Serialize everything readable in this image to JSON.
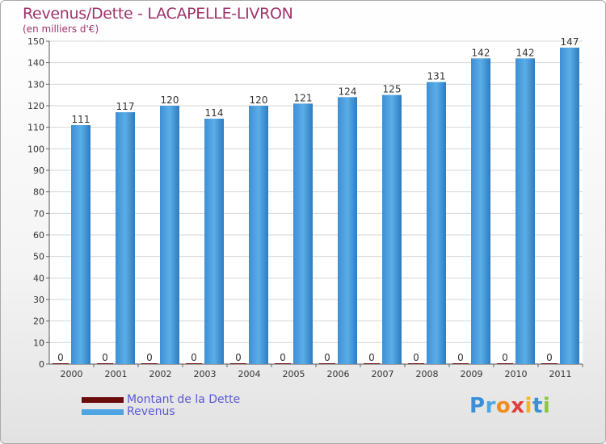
{
  "chart_data": {
    "type": "bar",
    "title": "Revenus/Dette - LACAPELLE-LIVRON",
    "subtitle": "(en milliers d'€)",
    "categories": [
      "2000",
      "2001",
      "2002",
      "2003",
      "2004",
      "2005",
      "2006",
      "2007",
      "2008",
      "2009",
      "2010",
      "2011"
    ],
    "series": [
      {
        "name": "Montant de la Dette",
        "color": "#6b0c0c",
        "values": [
          0,
          0,
          0,
          0,
          0,
          0,
          0,
          0,
          0,
          0,
          0,
          0
        ]
      },
      {
        "name": "Revenus",
        "color": "#4ea3e2",
        "values": [
          111,
          117,
          120,
          114,
          120,
          121,
          124,
          125,
          131,
          142,
          142,
          147
        ]
      }
    ],
    "ylim": [
      0,
      150
    ],
    "yticks": [
      0,
      10,
      20,
      30,
      40,
      50,
      60,
      70,
      80,
      90,
      100,
      110,
      120,
      130,
      140,
      150
    ],
    "grid": true,
    "legend_position": "bottom-left"
  },
  "legend": [
    {
      "label": "Montant de la Dette",
      "color": "#6b0c0c"
    },
    {
      "label": "Revenus",
      "color": "#4ea3e2"
    }
  ],
  "logo": {
    "letters": [
      "P",
      "r",
      "o",
      "x",
      "i",
      "t",
      "i"
    ],
    "colors": [
      "#3a8fd8",
      "#4aa8e0",
      "#f08c1e",
      "#e23b3b",
      "#f2b51e",
      "#3a8fd8",
      "#8cc63f"
    ]
  }
}
